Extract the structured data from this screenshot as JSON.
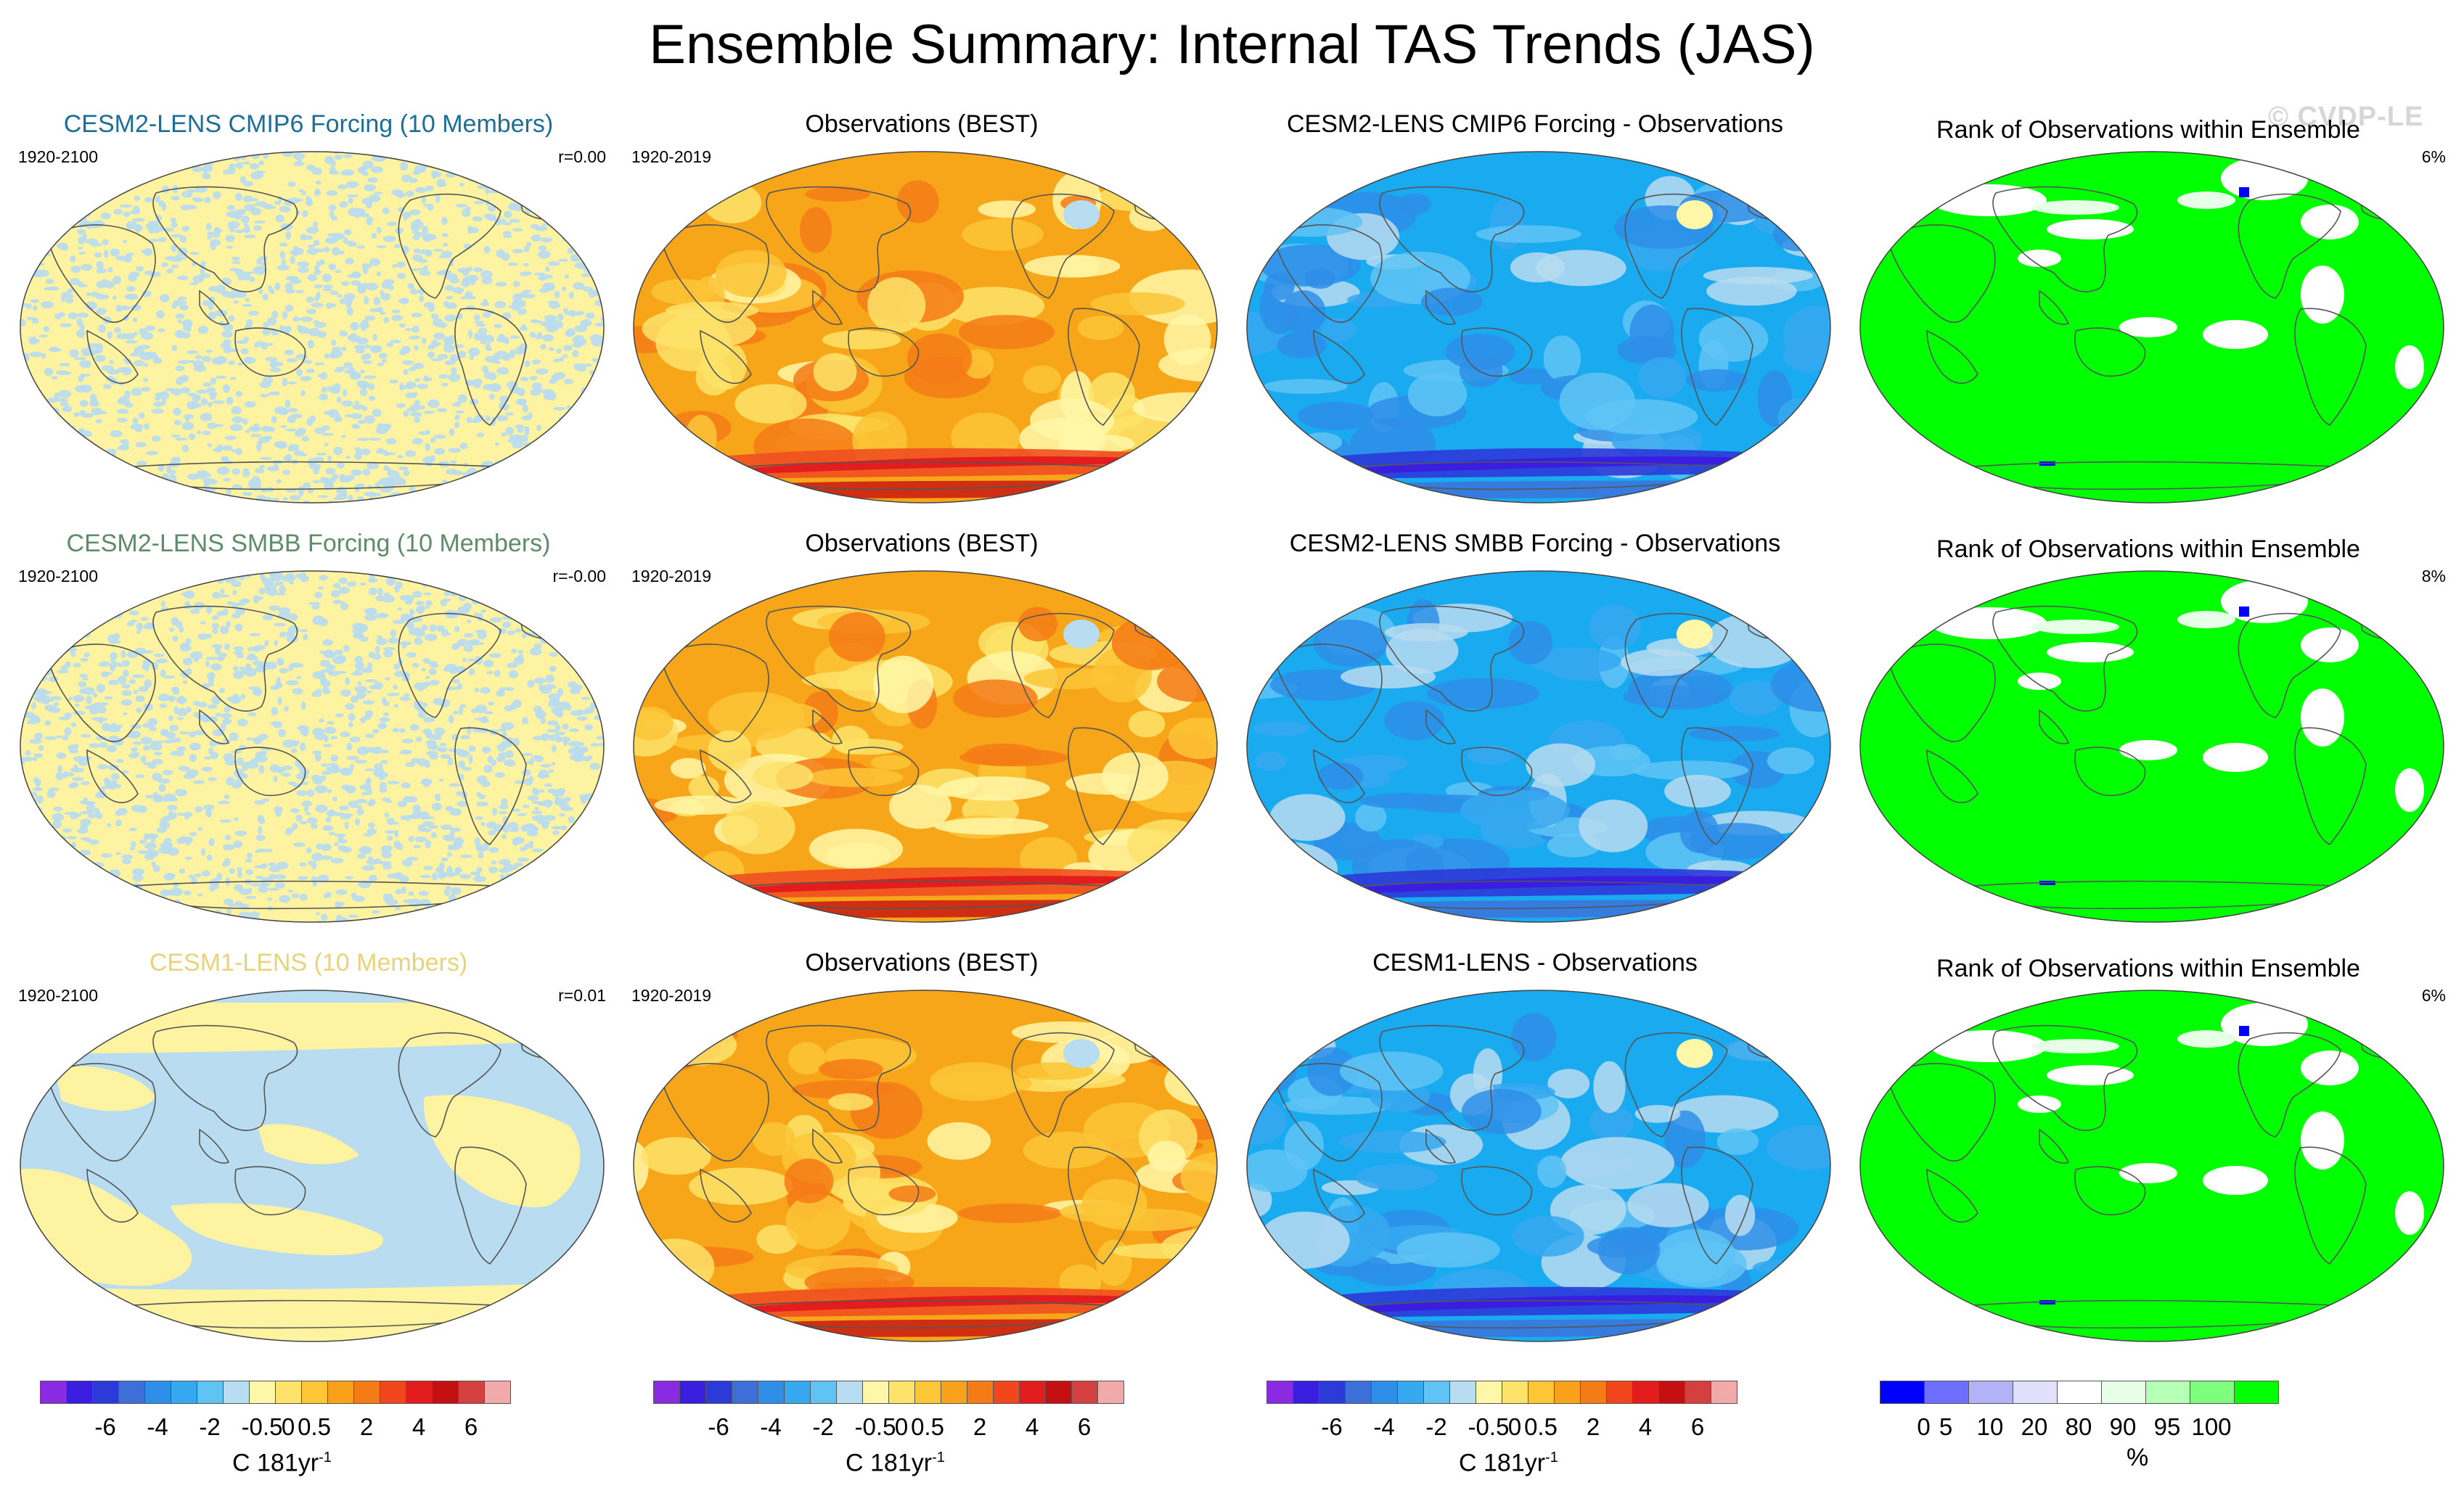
{
  "title": "Ensemble Summary: Internal TAS Trends (JAS)",
  "watermark": "© CVDP-LE",
  "rows": [
    {
      "model": {
        "title": "CESM2-LENS CMIP6 Forcing (10 Members)",
        "title_color": "#1c6e96",
        "period": "1920-2100",
        "corr": "r=0.00",
        "style": "noise"
      },
      "obs": {
        "title": "Observations (BEST)",
        "period": "1920-2019"
      },
      "diff": {
        "title": "CESM2-LENS CMIP6 Forcing - Observations"
      },
      "rank": {
        "title": "Rank of Observations within Ensemble",
        "pct": "6%"
      }
    },
    {
      "model": {
        "title": "CESM2-LENS SMBB Forcing (10 Members)",
        "title_color": "#5e8c6a",
        "period": "1920-2100",
        "corr": "r=-0.00",
        "style": "noise"
      },
      "obs": {
        "title": "Observations (BEST)",
        "period": "1920-2019"
      },
      "diff": {
        "title": "CESM2-LENS SMBB Forcing - Observations"
      },
      "rank": {
        "title": "Rank of Observations within Ensemble",
        "pct": "8%"
      }
    },
    {
      "model": {
        "title": "CESM1-LENS (10 Members)",
        "title_color": "#e8d27a",
        "period": "1920-2100",
        "corr": "r=0.01",
        "style": "smooth"
      },
      "obs": {
        "title": "Observations (BEST)",
        "period": "1920-2019"
      },
      "diff": {
        "title": "CESM1-LENS - Observations"
      },
      "rank": {
        "title": "Rank of Observations within Ensemble",
        "pct": "6%"
      }
    }
  ],
  "colorbars": {
    "trend": {
      "colors": [
        "#8a2be2",
        "#3a1ee0",
        "#2b3ad8",
        "#3d6fd9",
        "#2f8ee8",
        "#36a8f0",
        "#5fc4f4",
        "#b8dcf0",
        "#fff7a8",
        "#fde36a",
        "#fcc637",
        "#f9a11b",
        "#f57b16",
        "#f0461b",
        "#e31d1d",
        "#c41010",
        "#d44040",
        "#f2a9a9"
      ],
      "ticks": [
        "-6",
        "-4",
        "-2",
        "-0.5",
        "0",
        "0.5",
        "2",
        "4",
        "6"
      ],
      "tick_boundaries": [
        2,
        4,
        6,
        8,
        9,
        10,
        12,
        14,
        16
      ],
      "unit": "C 181yr",
      "unit_exp": "-1"
    },
    "rank": {
      "colors": [
        "#0000ff",
        "#6e6eff",
        "#b2b2f7",
        "#e0e0fa",
        "#ffffff",
        "#e6ffe6",
        "#b6ffb6",
        "#7dff7d",
        "#00ff00"
      ],
      "ticks": [
        "0",
        "5",
        "10",
        "20",
        "80",
        "90",
        "95",
        "100"
      ],
      "tick_boundaries": [
        0.5,
        1,
        2,
        3,
        4,
        5,
        6,
        7
      ],
      "unit": "%"
    }
  },
  "colors": {
    "obs_base": "#f7a61a",
    "diff_base": "#1aaaf0",
    "rank_base": "#00ff00",
    "noise_a": "#fdf3a0",
    "noise_b": "#b9dcf0",
    "coast": "#555555"
  }
}
